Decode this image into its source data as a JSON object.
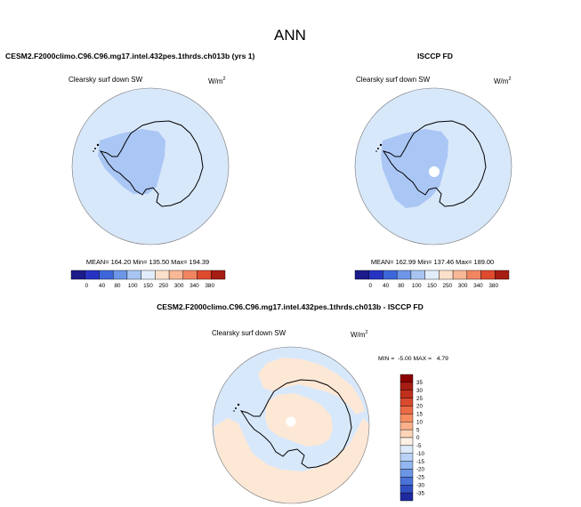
{
  "page": {
    "title": "ANN"
  },
  "colors": {
    "background": "#ffffff",
    "ocean_fill": "#d8e8fb",
    "cap_fill": "#aac6f4",
    "diff_positive_fill": "#fde8d6",
    "coast": "#000000"
  },
  "chart_data": [
    {
      "type": "heatmap",
      "projection": "south-polar-stereographic",
      "title": "CESM2.F2000climo.C96.C96.mg17.intel.432pes.1thrds.ch013b (yrs 1)",
      "variable_label": "Clearsky surf down SW",
      "units_base": "W/m",
      "units_exp": "2",
      "stats_text": "MEAN= 164.20  Min= 135.50  Max= 194.39",
      "stats": {
        "mean": 164.2,
        "min": 135.5,
        "max": 194.39
      },
      "colorbar": {
        "orientation": "horizontal",
        "levels": [
          "0",
          "40",
          "80",
          "100",
          "150",
          "250",
          "300",
          "340",
          "380"
        ],
        "colors": [
          "#1b1b8a",
          "#2633c2",
          "#3d66d8",
          "#6d96e8",
          "#a8c5f2",
          "#e2edfc",
          "#fbe0cb",
          "#f8b795",
          "#f08560",
          "#dd4a2e",
          "#a51d13"
        ]
      }
    },
    {
      "type": "heatmap",
      "projection": "south-polar-stereographic",
      "title": "ISCCP FD",
      "variable_label": "Clearsky surf down SW",
      "units_base": "W/m",
      "units_exp": "2",
      "stats_text": "MEAN= 162.99  Min= 137.46  Max= 189.00",
      "stats": {
        "mean": 162.99,
        "min": 137.46,
        "max": 189.0
      },
      "colorbar": {
        "orientation": "horizontal",
        "levels": [
          "0",
          "40",
          "80",
          "100",
          "150",
          "250",
          "300",
          "340",
          "380"
        ],
        "colors": [
          "#1b1b8a",
          "#2633c2",
          "#3d66d8",
          "#6d96e8",
          "#a8c5f2",
          "#e2edfc",
          "#fbe0cb",
          "#f8b795",
          "#f08560",
          "#dd4a2e",
          "#a51d13"
        ]
      }
    },
    {
      "type": "heatmap",
      "projection": "south-polar-stereographic",
      "title": "CESM2.F2000climo.C96.C96.mg17.intel.432pes.1thrds.ch013b - ISCCP FD",
      "variable_label": "Clearsky surf down SW",
      "units_base": "W/m",
      "units_exp": "2",
      "stats_text": "MIN =  -5.00 MAX =   4.79",
      "stats": {
        "min": -5.0,
        "max": 4.79
      },
      "colorbar": {
        "orientation": "vertical",
        "levels": [
          "35",
          "30",
          "25",
          "20",
          "15",
          "10",
          "5",
          "0",
          "-5",
          "-10",
          "-15",
          "-20",
          "-25",
          "-30",
          "-35"
        ],
        "colors": [
          "#8b0000",
          "#a51d13",
          "#c0301d",
          "#d84a2e",
          "#eb6a45",
          "#f68c60",
          "#fbb08a",
          "#fdd5b8",
          "#fdf0e4",
          "#ddeafb",
          "#b9d2f6",
          "#92b6ef",
          "#6b96e5",
          "#4a72d8",
          "#3050c2",
          "#1f2aa0"
        ]
      }
    }
  ]
}
